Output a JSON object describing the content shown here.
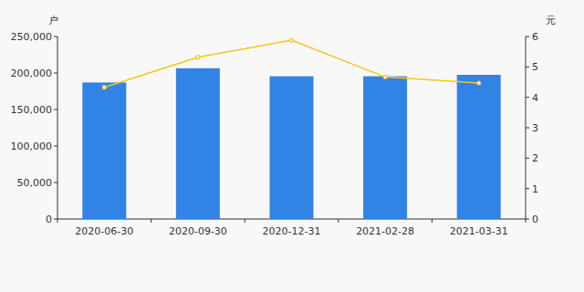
{
  "chart_data": {
    "type": "bar",
    "y_label": "户",
    "y2_label": "元",
    "categories": [
      "2020-06-30",
      "2020-09-30",
      "2020-12-31",
      "2021-02-28",
      "2021-03-31"
    ],
    "series": [
      {
        "type": "bar",
        "color": "#3283e6",
        "values": [
          187000,
          206500,
          195500,
          195500,
          197500
        ]
      },
      {
        "type": "line",
        "axis": "y2",
        "color": "#f5c518",
        "marker": "circle",
        "values": [
          4.33,
          5.32,
          5.88,
          4.67,
          4.47
        ]
      }
    ],
    "ylim": [
      0,
      250000
    ],
    "yticks": [
      0,
      {
        "value": 50000,
        "label": "50,000"
      },
      {
        "value": 100000,
        "label": "100,000"
      },
      {
        "value": 150000,
        "label": "150,000"
      },
      {
        "value": 200000,
        "label": "200,000"
      },
      {
        "value": 250000,
        "label": "250,000"
      }
    ],
    "y2lim": [
      0,
      6
    ],
    "y2ticks": [
      0,
      1,
      2,
      3,
      4,
      5,
      6
    ],
    "grid": false
  }
}
